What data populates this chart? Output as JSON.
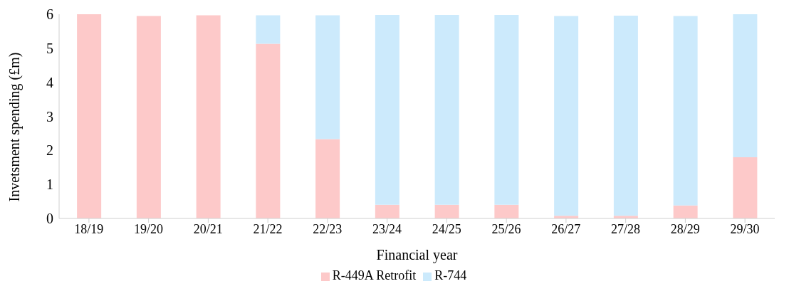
{
  "chart_data": {
    "type": "bar",
    "stacked": true,
    "xlabel": "Financial year",
    "ylabel": "Invetsment spending (£m)",
    "categories": [
      "18/19",
      "19/20",
      "20/21",
      "21/22",
      "22/23",
      "23/24",
      "24/25",
      "25/26",
      "26/27",
      "27/28",
      "28/29",
      "29/30"
    ],
    "series": [
      {
        "name": "R-449A Retrofit",
        "color": "#fdc9c9",
        "values": [
          6.0,
          5.95,
          5.97,
          5.13,
          2.33,
          0.4,
          0.4,
          0.4,
          0.08,
          0.08,
          0.38,
          1.8
        ]
      },
      {
        "name": "R-744",
        "color": "#cceafc",
        "values": [
          0,
          0,
          0,
          0.84,
          3.64,
          5.58,
          5.58,
          5.58,
          5.87,
          5.88,
          5.57,
          4.2
        ]
      }
    ],
    "ylim": [
      0,
      6
    ],
    "yticks": [
      0,
      1,
      2,
      3,
      4,
      5,
      6
    ],
    "grid": false,
    "legend": "bottom"
  }
}
